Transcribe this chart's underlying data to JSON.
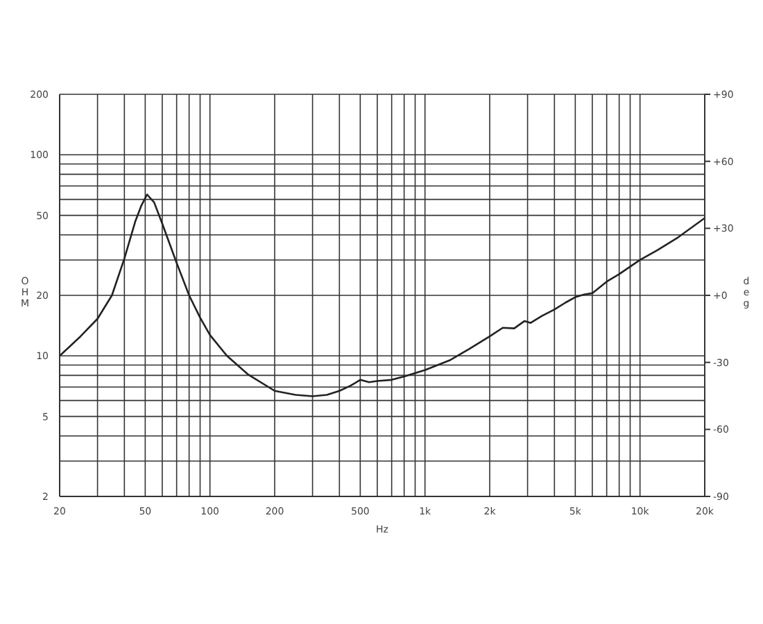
{
  "chart_data": {
    "type": "line",
    "xlabel": "Hz",
    "ylabel": "OHM",
    "y2label": "deg",
    "log": "xy",
    "grid": true,
    "marker": "none",
    "line_style": "solid",
    "xlim": [
      20,
      20000
    ],
    "xticks": [
      20,
      {
        "value": 30,
        "label": null
      },
      {
        "value": 40,
        "label": null
      },
      50,
      {
        "value": 60,
        "label": null
      },
      {
        "value": 70,
        "label": null
      },
      {
        "value": 80,
        "label": null
      },
      {
        "value": 90,
        "label": null
      },
      100,
      200,
      {
        "value": 300,
        "label": null
      },
      {
        "value": 400,
        "label": null
      },
      500,
      {
        "value": 600,
        "label": null
      },
      {
        "value": 700,
        "label": null
      },
      {
        "value": 800,
        "label": null
      },
      {
        "value": 900,
        "label": null
      },
      {
        "value": 1000,
        "label": "1k"
      },
      {
        "value": 2000,
        "label": "2k"
      },
      {
        "value": 3000,
        "label": null
      },
      {
        "value": 4000,
        "label": null
      },
      {
        "value": 5000,
        "label": "5k"
      },
      {
        "value": 6000,
        "label": null
      },
      {
        "value": 7000,
        "label": null
      },
      {
        "value": 8000,
        "label": null
      },
      {
        "value": 9000,
        "label": null
      },
      {
        "value": 10000,
        "label": "10k"
      },
      {
        "value": 20000,
        "label": "20k"
      }
    ],
    "ylim": [
      2,
      200
    ],
    "yticks": [
      2,
      {
        "value": 3,
        "label": null
      },
      {
        "value": 4,
        "label": null
      },
      5,
      {
        "value": 6,
        "label": null
      },
      {
        "value": 7,
        "label": null
      },
      {
        "value": 8,
        "label": null
      },
      {
        "value": 9,
        "label": null
      },
      10,
      20,
      {
        "value": 30,
        "label": null
      },
      {
        "value": 40,
        "label": null
      },
      50,
      {
        "value": 60,
        "label": null
      },
      {
        "value": 70,
        "label": null
      },
      {
        "value": 80,
        "label": null
      },
      {
        "value": 90,
        "label": null
      },
      100,
      200
    ],
    "y2lim": [
      -90,
      90
    ],
    "y2ticks": [
      {
        "value": 90,
        "label": "+90"
      },
      {
        "value": 60,
        "label": "+60"
      },
      {
        "value": 30,
        "label": "+30"
      },
      {
        "value": 0,
        "label": "+0"
      },
      -30,
      -60,
      -90
    ],
    "series": [
      {
        "color": "#222222",
        "x": [
          20,
          25,
          30,
          35,
          40,
          45,
          48,
          51,
          55,
          60,
          65,
          70,
          80,
          90,
          100,
          120,
          150,
          200,
          250,
          300,
          350,
          400,
          450,
          500,
          550,
          600,
          700,
          800,
          1000,
          1300,
          1600,
          2000,
          2300,
          2600,
          2900,
          3100,
          3500,
          4000,
          4500,
          5000,
          5500,
          6000,
          7000,
          8000,
          10000,
          12000,
          15000,
          20000
        ],
        "values": [
          10,
          12.5,
          15.3,
          20,
          30.5,
          46.8,
          56,
          63.5,
          58,
          45.5,
          36,
          29,
          20,
          15.5,
          12.7,
          10,
          8.1,
          6.7,
          6.4,
          6.3,
          6.4,
          6.7,
          7.1,
          7.6,
          7.4,
          7.5,
          7.6,
          7.9,
          8.5,
          9.5,
          10.8,
          12.5,
          13.8,
          13.7,
          14.9,
          14.6,
          15.8,
          17,
          18.4,
          19.6,
          20.2,
          20.5,
          23.4,
          25.5,
          30,
          33.5,
          38.8,
          48.5
        ]
      }
    ]
  }
}
